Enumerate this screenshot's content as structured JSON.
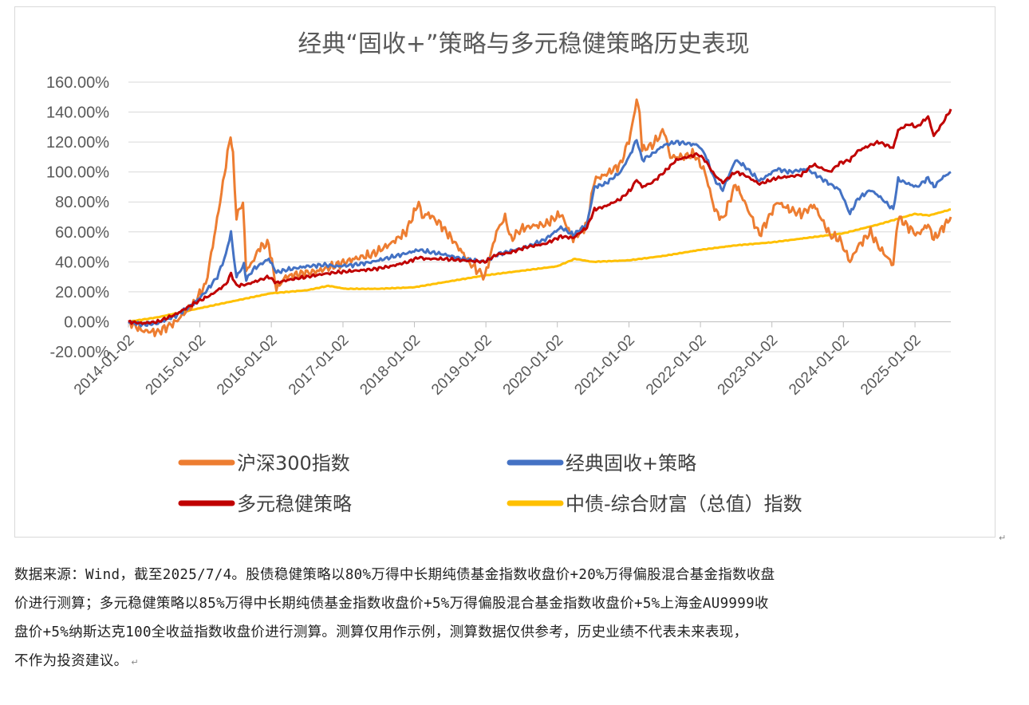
{
  "chart_data": {
    "type": "line",
    "title": "经典“固收+”策略与多元稳健策略历史表现",
    "y_ticks": [
      "160.00%",
      "140.00%",
      "120.00%",
      "100.00%",
      "80.00%",
      "60.00%",
      "40.00%",
      "20.00%",
      "0.00%",
      "-20.00%"
    ],
    "ylim": [
      -20,
      160
    ],
    "x_ticks": [
      "2014-01-02",
      "2015-01-02",
      "2016-01-02",
      "2017-01-02",
      "2018-01-02",
      "2019-01-02",
      "2020-01-02",
      "2021-01-02",
      "2022-01-02",
      "2023-01-02",
      "2024-01-02",
      "2025-01-02"
    ],
    "x_start": "2014-01-02",
    "x_end": "2025-07-04",
    "grid": true,
    "legend_position": "bottom",
    "series": [
      {
        "name": "沪深300指数",
        "color": "#ED7D31",
        "points": [
          [
            "2014-01-02",
            0
          ],
          [
            "2014-03-15",
            -6
          ],
          [
            "2014-06-01",
            -7
          ],
          [
            "2014-09-01",
            0
          ],
          [
            "2014-12-01",
            12
          ],
          [
            "2015-02-01",
            25
          ],
          [
            "2015-03-01",
            45
          ],
          [
            "2015-04-15",
            80
          ],
          [
            "2015-05-15",
            105
          ],
          [
            "2015-06-08",
            125
          ],
          [
            "2015-06-20",
            110
          ],
          [
            "2015-07-08",
            70
          ],
          [
            "2015-08-10",
            80
          ],
          [
            "2015-08-26",
            35
          ],
          [
            "2015-09-20",
            38
          ],
          [
            "2015-11-05",
            50
          ],
          [
            "2015-12-20",
            52
          ],
          [
            "2016-01-28",
            22
          ],
          [
            "2016-03-15",
            30
          ],
          [
            "2016-06-01",
            32
          ],
          [
            "2016-09-01",
            34
          ],
          [
            "2016-12-01",
            38
          ],
          [
            "2017-03-01",
            42
          ],
          [
            "2017-06-01",
            45
          ],
          [
            "2017-09-01",
            52
          ],
          [
            "2017-11-20",
            60
          ],
          [
            "2018-01-24",
            80
          ],
          [
            "2018-02-10",
            70
          ],
          [
            "2018-03-15",
            72
          ],
          [
            "2018-05-15",
            65
          ],
          [
            "2018-08-01",
            52
          ],
          [
            "2018-10-20",
            38
          ],
          [
            "2018-12-28",
            30
          ],
          [
            "2019-02-25",
            60
          ],
          [
            "2019-04-10",
            70
          ],
          [
            "2019-05-10",
            55
          ],
          [
            "2019-07-01",
            62
          ],
          [
            "2019-09-01",
            64
          ],
          [
            "2019-11-01",
            65
          ],
          [
            "2020-01-20",
            72
          ],
          [
            "2020-03-23",
            55
          ],
          [
            "2020-06-01",
            65
          ],
          [
            "2020-07-10",
            95
          ],
          [
            "2020-09-01",
            98
          ],
          [
            "2020-11-20",
            105
          ],
          [
            "2021-01-10",
            125
          ],
          [
            "2021-02-10",
            148
          ],
          [
            "2021-02-25",
            140
          ],
          [
            "2021-03-10",
            115
          ],
          [
            "2021-05-01",
            118
          ],
          [
            "2021-07-01",
            128
          ],
          [
            "2021-08-01",
            110
          ],
          [
            "2021-10-01",
            110
          ],
          [
            "2021-12-01",
            112
          ],
          [
            "2022-01-25",
            100
          ],
          [
            "2022-03-15",
            75
          ],
          [
            "2022-04-26",
            68
          ],
          [
            "2022-06-30",
            92
          ],
          [
            "2022-08-15",
            80
          ],
          [
            "2022-10-31",
            58
          ],
          [
            "2023-01-28",
            80
          ],
          [
            "2023-04-01",
            75
          ],
          [
            "2023-06-01",
            72
          ],
          [
            "2023-08-05",
            78
          ],
          [
            "2023-10-25",
            58
          ],
          [
            "2023-12-15",
            55
          ],
          [
            "2024-02-05",
            40
          ],
          [
            "2024-03-15",
            50
          ],
          [
            "2024-05-20",
            60
          ],
          [
            "2024-07-01",
            50
          ],
          [
            "2024-09-13",
            38
          ],
          [
            "2024-10-08",
            70
          ],
          [
            "2024-11-15",
            65
          ],
          [
            "2025-01-13",
            58
          ],
          [
            "2025-03-10",
            65
          ],
          [
            "2025-04-08",
            55
          ],
          [
            "2025-05-20",
            62
          ],
          [
            "2025-07-04",
            70
          ]
        ]
      },
      {
        "name": "经典固收+策略",
        "color": "#4472C4",
        "points": [
          [
            "2014-01-02",
            0
          ],
          [
            "2014-03-15",
            -2
          ],
          [
            "2014-06-01",
            -1
          ],
          [
            "2014-09-01",
            4
          ],
          [
            "2014-12-01",
            12
          ],
          [
            "2015-02-01",
            20
          ],
          [
            "2015-04-01",
            30
          ],
          [
            "2015-05-15",
            45
          ],
          [
            "2015-06-10",
            60
          ],
          [
            "2015-06-25",
            42
          ],
          [
            "2015-07-08",
            30
          ],
          [
            "2015-08-15",
            38
          ],
          [
            "2015-08-27",
            28
          ],
          [
            "2015-10-01",
            35
          ],
          [
            "2015-12-20",
            42
          ],
          [
            "2016-01-28",
            33
          ],
          [
            "2016-04-01",
            35
          ],
          [
            "2016-07-01",
            37
          ],
          [
            "2016-10-01",
            38
          ],
          [
            "2016-12-01",
            37
          ],
          [
            "2017-03-01",
            38
          ],
          [
            "2017-06-01",
            40
          ],
          [
            "2017-09-01",
            43
          ],
          [
            "2017-12-01",
            46
          ],
          [
            "2018-01-24",
            48
          ],
          [
            "2018-03-01",
            47
          ],
          [
            "2018-06-01",
            45
          ],
          [
            "2018-09-01",
            42
          ],
          [
            "2018-12-28",
            40
          ],
          [
            "2019-03-01",
            45
          ],
          [
            "2019-05-01",
            47
          ],
          [
            "2019-08-01",
            50
          ],
          [
            "2019-11-01",
            55
          ],
          [
            "2020-01-20",
            63
          ],
          [
            "2020-03-23",
            58
          ],
          [
            "2020-06-01",
            65
          ],
          [
            "2020-07-10",
            90
          ],
          [
            "2020-09-01",
            92
          ],
          [
            "2020-11-20",
            100
          ],
          [
            "2021-01-10",
            112
          ],
          [
            "2021-02-10",
            122
          ],
          [
            "2021-03-10",
            108
          ],
          [
            "2021-05-01",
            112
          ],
          [
            "2021-07-01",
            118
          ],
          [
            "2021-09-01",
            120
          ],
          [
            "2021-12-20",
            118
          ],
          [
            "2022-01-25",
            112
          ],
          [
            "2022-03-15",
            95
          ],
          [
            "2022-04-26",
            88
          ],
          [
            "2022-06-30",
            108
          ],
          [
            "2022-08-15",
            104
          ],
          [
            "2022-10-31",
            94
          ],
          [
            "2023-01-28",
            102
          ],
          [
            "2023-04-01",
            100
          ],
          [
            "2023-07-01",
            102
          ],
          [
            "2023-10-25",
            92
          ],
          [
            "2023-12-15",
            88
          ],
          [
            "2024-02-05",
            72
          ],
          [
            "2024-03-15",
            82
          ],
          [
            "2024-05-20",
            88
          ],
          [
            "2024-07-01",
            84
          ],
          [
            "2024-09-13",
            75
          ],
          [
            "2024-10-08",
            95
          ],
          [
            "2024-12-01",
            92
          ],
          [
            "2025-01-13",
            90
          ],
          [
            "2025-03-10",
            96
          ],
          [
            "2025-04-08",
            90
          ],
          [
            "2025-05-20",
            96
          ],
          [
            "2025-07-04",
            100
          ]
        ]
      },
      {
        "name": "多元稳健策略",
        "color": "#C00000",
        "points": [
          [
            "2014-01-02",
            0
          ],
          [
            "2014-03-15",
            -1
          ],
          [
            "2014-06-01",
            0
          ],
          [
            "2014-09-01",
            5
          ],
          [
            "2014-12-01",
            12
          ],
          [
            "2015-03-01",
            18
          ],
          [
            "2015-05-15",
            25
          ],
          [
            "2015-06-10",
            32
          ],
          [
            "2015-07-08",
            24
          ],
          [
            "2015-09-01",
            25
          ],
          [
            "2015-12-20",
            30
          ],
          [
            "2016-01-28",
            26
          ],
          [
            "2016-04-01",
            28
          ],
          [
            "2016-07-01",
            30
          ],
          [
            "2016-10-01",
            32
          ],
          [
            "2016-12-01",
            33
          ],
          [
            "2017-03-01",
            34
          ],
          [
            "2017-06-01",
            35
          ],
          [
            "2017-09-01",
            37
          ],
          [
            "2017-12-01",
            40
          ],
          [
            "2018-01-24",
            43
          ],
          [
            "2018-03-01",
            42
          ],
          [
            "2018-06-01",
            42
          ],
          [
            "2018-09-01",
            41
          ],
          [
            "2018-12-28",
            40
          ],
          [
            "2019-03-01",
            45
          ],
          [
            "2019-05-01",
            46
          ],
          [
            "2019-08-01",
            50
          ],
          [
            "2019-11-01",
            52
          ],
          [
            "2020-01-20",
            57
          ],
          [
            "2020-03-23",
            56
          ],
          [
            "2020-06-01",
            63
          ],
          [
            "2020-07-10",
            75
          ],
          [
            "2020-09-01",
            77
          ],
          [
            "2020-11-20",
            82
          ],
          [
            "2021-01-10",
            88
          ],
          [
            "2021-02-10",
            95
          ],
          [
            "2021-03-10",
            90
          ],
          [
            "2021-05-01",
            93
          ],
          [
            "2021-07-01",
            100
          ],
          [
            "2021-09-01",
            108
          ],
          [
            "2021-12-20",
            112
          ],
          [
            "2022-01-25",
            108
          ],
          [
            "2022-03-15",
            98
          ],
          [
            "2022-04-26",
            93
          ],
          [
            "2022-06-30",
            100
          ],
          [
            "2022-08-15",
            98
          ],
          [
            "2022-10-31",
            92
          ],
          [
            "2023-01-28",
            96
          ],
          [
            "2023-04-01",
            97
          ],
          [
            "2023-06-01",
            98
          ],
          [
            "2023-08-01",
            105
          ],
          [
            "2023-10-25",
            100
          ],
          [
            "2023-12-15",
            106
          ],
          [
            "2024-02-05",
            108
          ],
          [
            "2024-03-15",
            114
          ],
          [
            "2024-05-20",
            118
          ],
          [
            "2024-07-01",
            120
          ],
          [
            "2024-09-13",
            116
          ],
          [
            "2024-10-08",
            128
          ],
          [
            "2024-12-01",
            132
          ],
          [
            "2025-01-13",
            130
          ],
          [
            "2025-03-10",
            137
          ],
          [
            "2025-04-08",
            124
          ],
          [
            "2025-05-20",
            132
          ],
          [
            "2025-07-04",
            142
          ]
        ]
      },
      {
        "name": "中债-综合财富（总值）指数",
        "color": "#FFC000",
        "points": [
          [
            "2014-01-02",
            0
          ],
          [
            "2014-06-01",
            3
          ],
          [
            "2014-12-31",
            9
          ],
          [
            "2015-06-30",
            14
          ],
          [
            "2015-12-31",
            19
          ],
          [
            "2016-06-30",
            21
          ],
          [
            "2016-10-20",
            24
          ],
          [
            "2017-01-15",
            22
          ],
          [
            "2017-06-30",
            22
          ],
          [
            "2017-12-31",
            23
          ],
          [
            "2018-06-30",
            27
          ],
          [
            "2018-12-31",
            31
          ],
          [
            "2019-06-30",
            34
          ],
          [
            "2019-12-31",
            37
          ],
          [
            "2020-04-01",
            42
          ],
          [
            "2020-06-30",
            40
          ],
          [
            "2020-12-31",
            41
          ],
          [
            "2021-06-30",
            44
          ],
          [
            "2021-12-31",
            48
          ],
          [
            "2022-06-30",
            51
          ],
          [
            "2022-12-31",
            53
          ],
          [
            "2023-06-30",
            56
          ],
          [
            "2023-12-31",
            59
          ],
          [
            "2024-06-30",
            65
          ],
          [
            "2024-12-31",
            72
          ],
          [
            "2025-03-15",
            71
          ],
          [
            "2025-07-04",
            75
          ]
        ]
      }
    ]
  },
  "caption": {
    "line1": "数据来源：Wind，截至2025/7/4。股债稳健策略以80%万得中长期纯债基金指数收盘价+20%万得偏股混合基金指数收盘",
    "line2": "价进行测算；多元稳健策略以85%万得中长期纯债基金指数收盘价+5%万得偏股混合基金指数收盘价+5%上海金AU9999收",
    "line3": "盘价+5%纳斯达克100全收益指数收盘价进行测算。测算仅用作示例，测算数据仅供参考，历史业绩不代表未来表现，",
    "line4": "不作为投资建议。"
  },
  "marks": {
    "paragraph": "↵"
  }
}
